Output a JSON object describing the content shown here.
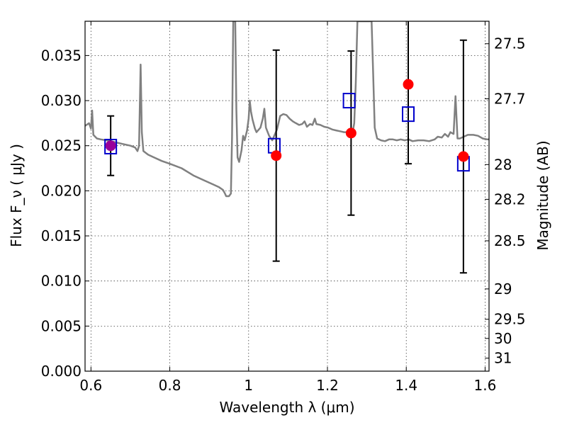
{
  "chart_data": {
    "type": "scatter",
    "xlabel": "Wavelength  λ (μm)",
    "ylabel": "Flux  F_ν  ( μJy )",
    "y2label": "Magnitude (AB)",
    "xlim": [
      0.585,
      1.61
    ],
    "ylim": [
      0.0,
      0.0388
    ],
    "grid": true,
    "x_ticks": [
      0.6,
      0.8,
      1.0,
      1.2,
      1.4,
      1.6
    ],
    "x_tick_labels": [
      "0.6",
      "0.8",
      "1",
      "1.2",
      "1.4",
      "1.6"
    ],
    "y_ticks": [
      0.0,
      0.005,
      0.01,
      0.015,
      0.02,
      0.025,
      0.03,
      0.035
    ],
    "y_tick_labels": [
      "0.000",
      "0.005",
      "0.010",
      "0.015",
      "0.020",
      "0.025",
      "0.030",
      "0.035"
    ],
    "y2_ticks": [
      {
        "mag": 27.5,
        "label": "27.5"
      },
      {
        "mag": 27.7,
        "label": "27.7"
      },
      {
        "mag": 28.0,
        "label": "28"
      },
      {
        "mag": 28.2,
        "label": "28.2"
      },
      {
        "mag": 28.5,
        "label": "28.5"
      },
      {
        "mag": 29.0,
        "label": "29"
      },
      {
        "mag": 29.5,
        "label": "29.5"
      },
      {
        "mag": 30.0,
        "label": "30"
      },
      {
        "mag": 31.0,
        "label": "31"
      }
    ],
    "observed": {
      "marker": "red circle",
      "color": "#ff0000",
      "points": [
        {
          "x": 0.65,
          "y": 0.025,
          "yerr_low": 0.0217,
          "yerr_high": 0.0283
        },
        {
          "x": 1.07,
          "y": 0.0239,
          "yerr_low": 0.0122,
          "yerr_high": 0.0356
        },
        {
          "x": 1.26,
          "y": 0.0264,
          "yerr_low": 0.0173,
          "yerr_high": 0.0355
        },
        {
          "x": 1.405,
          "y": 0.0318,
          "yerr_low": 0.023,
          "yerr_high": 0.0388
        },
        {
          "x": 1.545,
          "y": 0.0238,
          "yerr_low": 0.0109,
          "yerr_high": 0.0367
        }
      ]
    },
    "model_bandpass": {
      "marker": "blue open square",
      "color": "#0000cc",
      "points": [
        {
          "x": 0.65,
          "y": 0.0249
        },
        {
          "x": 1.065,
          "y": 0.025
        },
        {
          "x": 1.255,
          "y": 0.03
        },
        {
          "x": 1.405,
          "y": 0.0285
        },
        {
          "x": 1.545,
          "y": 0.023
        }
      ]
    },
    "overlap_color": "#990099",
    "spectrum": {
      "color": "#808080",
      "points": [
        [
          0.585,
          0.0272
        ],
        [
          0.595,
          0.0275
        ],
        [
          0.6,
          0.0269
        ],
        [
          0.603,
          0.0289
        ],
        [
          0.606,
          0.0262
        ],
        [
          0.615,
          0.0258
        ],
        [
          0.625,
          0.0257
        ],
        [
          0.64,
          0.0256
        ],
        [
          0.66,
          0.0254
        ],
        [
          0.68,
          0.0252
        ],
        [
          0.7,
          0.025
        ],
        [
          0.712,
          0.0248
        ],
        [
          0.718,
          0.0244
        ],
        [
          0.722,
          0.025
        ],
        [
          0.726,
          0.034
        ],
        [
          0.729,
          0.0265
        ],
        [
          0.733,
          0.0244
        ],
        [
          0.745,
          0.024
        ],
        [
          0.76,
          0.0237
        ],
        [
          0.78,
          0.0233
        ],
        [
          0.8,
          0.023
        ],
        [
          0.83,
          0.0225
        ],
        [
          0.86,
          0.0217
        ],
        [
          0.89,
          0.0211
        ],
        [
          0.91,
          0.0207
        ],
        [
          0.925,
          0.0204
        ],
        [
          0.935,
          0.0201
        ],
        [
          0.94,
          0.0197
        ],
        [
          0.943,
          0.0194
        ],
        [
          0.95,
          0.0194
        ],
        [
          0.955,
          0.0197
        ],
        [
          0.958,
          0.026
        ],
        [
          0.961,
          0.0388
        ],
        [
          0.966,
          0.0388
        ],
        [
          0.969,
          0.029
        ],
        [
          0.972,
          0.0237
        ],
        [
          0.976,
          0.0232
        ],
        [
          0.982,
          0.0245
        ],
        [
          0.986,
          0.0261
        ],
        [
          0.99,
          0.0256
        ],
        [
          0.996,
          0.0267
        ],
        [
          1.0,
          0.028
        ],
        [
          1.003,
          0.03
        ],
        [
          1.006,
          0.0288
        ],
        [
          1.01,
          0.0279
        ],
        [
          1.016,
          0.0269
        ],
        [
          1.02,
          0.0265
        ],
        [
          1.026,
          0.0268
        ],
        [
          1.03,
          0.027
        ],
        [
          1.036,
          0.028
        ],
        [
          1.04,
          0.0291
        ],
        [
          1.044,
          0.027
        ],
        [
          1.052,
          0.0261
        ],
        [
          1.06,
          0.0256
        ],
        [
          1.066,
          0.0262
        ],
        [
          1.072,
          0.0268
        ],
        [
          1.08,
          0.0283
        ],
        [
          1.088,
          0.0285
        ],
        [
          1.096,
          0.0284
        ],
        [
          1.104,
          0.028
        ],
        [
          1.112,
          0.0277
        ],
        [
          1.12,
          0.0275
        ],
        [
          1.128,
          0.0273
        ],
        [
          1.136,
          0.0274
        ],
        [
          1.142,
          0.0277
        ],
        [
          1.148,
          0.0271
        ],
        [
          1.156,
          0.0274
        ],
        [
          1.162,
          0.0273
        ],
        [
          1.168,
          0.028
        ],
        [
          1.172,
          0.0274
        ],
        [
          1.182,
          0.0273
        ],
        [
          1.192,
          0.0271
        ],
        [
          1.202,
          0.027
        ],
        [
          1.212,
          0.0268
        ],
        [
          1.222,
          0.0267
        ],
        [
          1.232,
          0.0266
        ],
        [
          1.242,
          0.0265
        ],
        [
          1.25,
          0.0265
        ],
        [
          1.258,
          0.0264
        ],
        [
          1.264,
          0.0265
        ],
        [
          1.268,
          0.0275
        ],
        [
          1.272,
          0.032
        ],
        [
          1.276,
          0.0388
        ],
        [
          1.312,
          0.0388
        ],
        [
          1.316,
          0.033
        ],
        [
          1.32,
          0.027
        ],
        [
          1.326,
          0.0258
        ],
        [
          1.336,
          0.0256
        ],
        [
          1.346,
          0.0255
        ],
        [
          1.356,
          0.0257
        ],
        [
          1.366,
          0.0257
        ],
        [
          1.376,
          0.0256
        ],
        [
          1.386,
          0.0257
        ],
        [
          1.396,
          0.0256
        ],
        [
          1.406,
          0.0257
        ],
        [
          1.416,
          0.0255
        ],
        [
          1.43,
          0.0256
        ],
        [
          1.444,
          0.0256
        ],
        [
          1.458,
          0.0255
        ],
        [
          1.472,
          0.0257
        ],
        [
          1.48,
          0.026
        ],
        [
          1.49,
          0.0259
        ],
        [
          1.498,
          0.0263
        ],
        [
          1.506,
          0.026
        ],
        [
          1.512,
          0.0265
        ],
        [
          1.516,
          0.0264
        ],
        [
          1.52,
          0.0263
        ],
        [
          1.525,
          0.0305
        ],
        [
          1.53,
          0.0258
        ],
        [
          1.536,
          0.0258
        ],
        [
          1.546,
          0.026
        ],
        [
          1.556,
          0.0262
        ],
        [
          1.57,
          0.0262
        ],
        [
          1.582,
          0.0261
        ],
        [
          1.594,
          0.0258
        ],
        [
          1.605,
          0.0257
        ],
        [
          1.61,
          0.0257
        ]
      ]
    }
  }
}
